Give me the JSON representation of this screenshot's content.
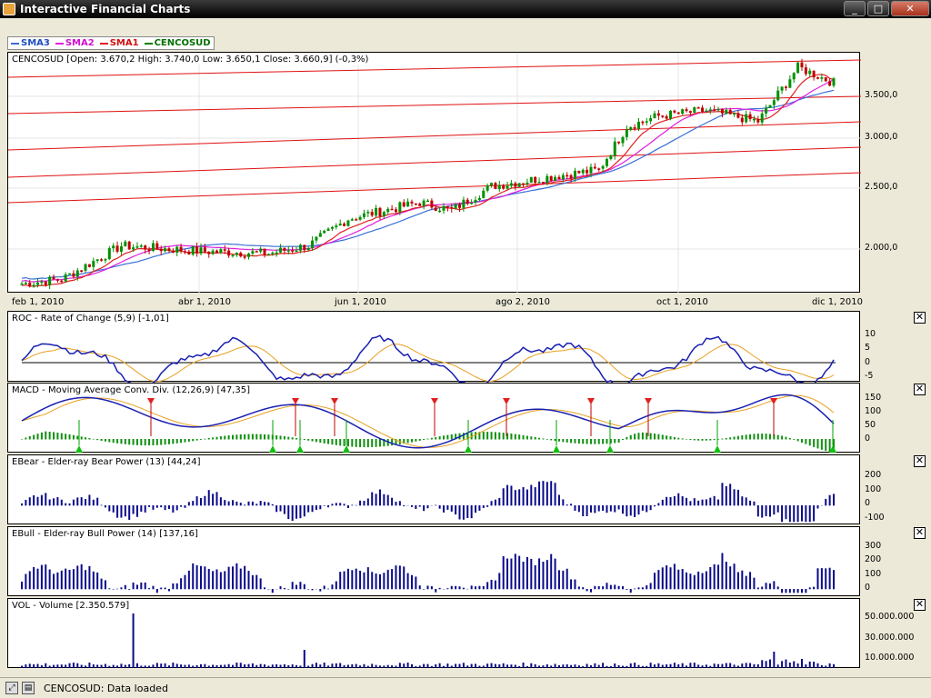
{
  "window": {
    "title": "Interactive Financial Charts",
    "buttons": [
      "_",
      "□",
      "✕"
    ]
  },
  "legend": [
    {
      "label": "SMA3",
      "color": "#3a6fd8"
    },
    {
      "label": "SMA2",
      "color": "#e020e0"
    },
    {
      "label": "SMA1",
      "color": "#e02020"
    },
    {
      "label": "CENCOSUD",
      "color": "#008000"
    }
  ],
  "price_panel": {
    "title": "CENCOSUD [Open: 3.670,2  High: 3.740,0  Low: 3.650,1  Close: 3.660,9] (-0,3%)",
    "y_labels": [
      "3.500,0",
      "3.000,0",
      "2.500,0",
      "2.000,0"
    ],
    "x_labels": [
      "feb 1, 2010",
      "abr 1, 2010",
      "jun 1, 2010",
      "ago 2, 2010",
      "oct 1, 2010",
      "dic 1, 2010"
    ]
  },
  "roc_panel": {
    "title": "ROC - Rate of Change (5,9) [-1,01]",
    "y_labels": [
      "10",
      "5",
      "0",
      "-5"
    ]
  },
  "macd_panel": {
    "title": "MACD - Moving Average Conv. Div. (12,26,9) [47,35]",
    "y_labels": [
      "150",
      "100",
      "50",
      "0"
    ]
  },
  "bear_panel": {
    "title": "EBear - Elder-ray Bear Power (13) [44,24]",
    "y_labels": [
      "200",
      "100",
      "0",
      "-100"
    ]
  },
  "bull_panel": {
    "title": "EBull - Elder-ray Bull Power (14) [137,16]",
    "y_labels": [
      "300",
      "200",
      "100",
      "0"
    ]
  },
  "vol_panel": {
    "title": "VOL - Volume [2.350.579]",
    "y_labels": [
      "50.000.000",
      "30.000.000",
      "10.000.000"
    ]
  },
  "close_icon": "✕",
  "status": {
    "text": "CENCOSUD: Data loaded",
    "icon_a": "fit-icon",
    "icon_b": "print-icon"
  }
}
